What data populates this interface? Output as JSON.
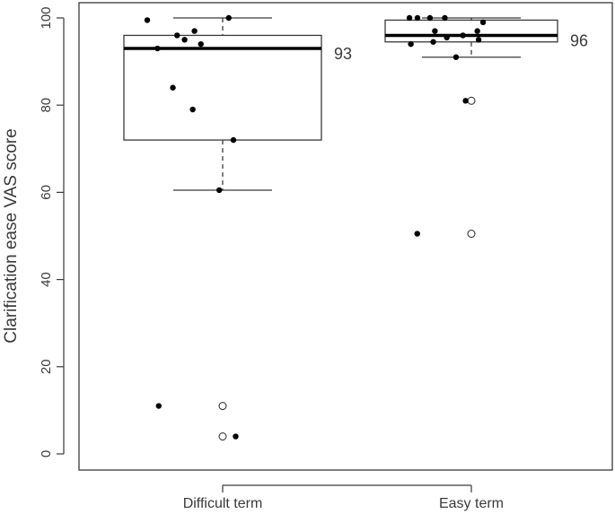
{
  "chart_data": {
    "type": "boxplot",
    "xlabel": "",
    "ylabel": "Clarification ease VAS score",
    "ylim": [
      0,
      100
    ],
    "yticks": [
      0,
      20,
      40,
      60,
      80,
      100
    ],
    "categories": [
      "Difficult term",
      "Easy term"
    ],
    "boxes": [
      {
        "category": "Difficult term",
        "whisker_low": 60.5,
        "q1": 72,
        "median": 93,
        "q3": 96,
        "whisker_high": 100,
        "median_label": "93",
        "outliers": [
          11,
          4
        ],
        "points": [
          100,
          99.5,
          97,
          96,
          95,
          94,
          93,
          84,
          79,
          72,
          60.5,
          11,
          4
        ]
      },
      {
        "category": "Easy term",
        "whisker_low": 91,
        "q1": 94.5,
        "median": 96,
        "q3": 99.5,
        "whisker_high": 100,
        "median_label": "96",
        "outliers": [
          81,
          50.5
        ],
        "points": [
          100,
          100,
          100,
          100,
          99,
          97,
          97,
          96,
          95.5,
          95,
          94.5,
          94,
          91,
          81,
          50.5
        ]
      }
    ],
    "colors": {
      "box": "#3a3a3a",
      "median": "#000000",
      "point": "#000000",
      "outlier_fill": "#ffffff"
    },
    "grid": false,
    "legend": "none"
  }
}
